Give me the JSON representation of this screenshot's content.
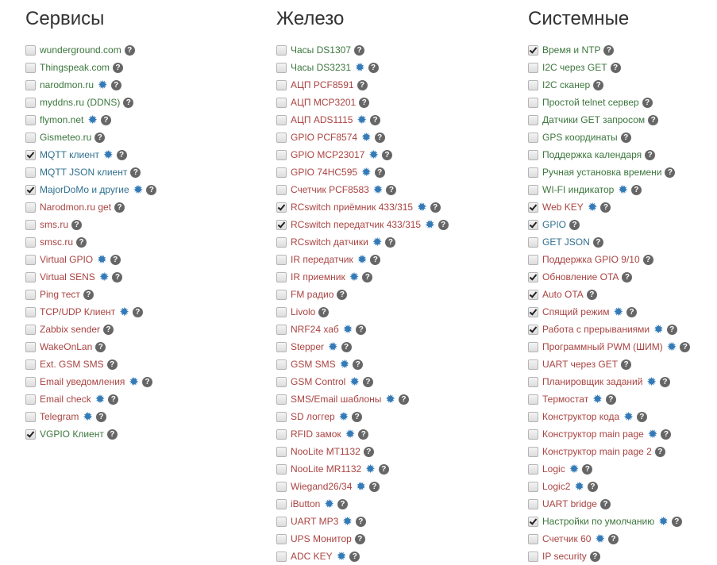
{
  "colors": {
    "g": "#3c763d",
    "b": "#31708f",
    "r": "#a94442"
  },
  "columns": [
    {
      "title": "Сервисы",
      "items": [
        {
          "label": "wunderground.com",
          "color": "g",
          "checked": false,
          "gear": false
        },
        {
          "label": "Thingspeak.com",
          "color": "g",
          "checked": false,
          "gear": false
        },
        {
          "label": "narodmon.ru",
          "color": "g",
          "checked": false,
          "gear": true
        },
        {
          "label": "myddns.ru (DDNS)",
          "color": "g",
          "checked": false,
          "gear": false
        },
        {
          "label": "flymon.net",
          "color": "g",
          "checked": false,
          "gear": true
        },
        {
          "label": "Gismeteo.ru",
          "color": "g",
          "checked": false,
          "gear": false
        },
        {
          "label": "MQTT клиент",
          "color": "b",
          "checked": true,
          "gear": true
        },
        {
          "label": "MQTT JSON клиент",
          "color": "b",
          "checked": false,
          "gear": false
        },
        {
          "label": "MajorDoMo и другие",
          "color": "b",
          "checked": true,
          "gear": true
        },
        {
          "label": "Narodmon.ru get",
          "color": "r",
          "checked": false,
          "gear": false
        },
        {
          "label": "sms.ru",
          "color": "r",
          "checked": false,
          "gear": false
        },
        {
          "label": "smsc.ru",
          "color": "r",
          "checked": false,
          "gear": false
        },
        {
          "label": "Virtual GPIO",
          "color": "r",
          "checked": false,
          "gear": true
        },
        {
          "label": "Virtual SENS",
          "color": "r",
          "checked": false,
          "gear": true
        },
        {
          "label": "Ping тест",
          "color": "r",
          "checked": false,
          "gear": false
        },
        {
          "label": "TCP/UDP Клиент",
          "color": "r",
          "checked": false,
          "gear": true
        },
        {
          "label": "Zabbix sender",
          "color": "r",
          "checked": false,
          "gear": false
        },
        {
          "label": "WakeOnLan",
          "color": "r",
          "checked": false,
          "gear": false
        },
        {
          "label": "Ext. GSM SMS",
          "color": "r",
          "checked": false,
          "gear": false
        },
        {
          "label": "Email уведомления",
          "color": "r",
          "checked": false,
          "gear": true
        },
        {
          "label": "Email check",
          "color": "r",
          "checked": false,
          "gear": true
        },
        {
          "label": "Telegram",
          "color": "r",
          "checked": false,
          "gear": true
        },
        {
          "label": "VGPIO Клиент",
          "color": "g",
          "checked": true,
          "gear": false
        }
      ]
    },
    {
      "title": "Железо",
      "items": [
        {
          "label": "Часы DS1307",
          "color": "g",
          "checked": false,
          "gear": false
        },
        {
          "label": "Часы DS3231",
          "color": "g",
          "checked": false,
          "gear": true
        },
        {
          "label": "АЦП PCF8591",
          "color": "r",
          "checked": false,
          "gear": false
        },
        {
          "label": "АЦП MCP3201",
          "color": "r",
          "checked": false,
          "gear": false
        },
        {
          "label": "АЦП ADS1115",
          "color": "r",
          "checked": false,
          "gear": true
        },
        {
          "label": "GPIO PCF8574",
          "color": "r",
          "checked": false,
          "gear": true
        },
        {
          "label": "GPIO MCP23017",
          "color": "r",
          "checked": false,
          "gear": true
        },
        {
          "label": "GPIO 74HC595",
          "color": "r",
          "checked": false,
          "gear": true
        },
        {
          "label": "Счетчик PCF8583",
          "color": "r",
          "checked": false,
          "gear": true
        },
        {
          "label": "RCswitch приёмник 433/315",
          "color": "r",
          "checked": true,
          "gear": true
        },
        {
          "label": "RCswitch передатчик 433/315",
          "color": "r",
          "checked": true,
          "gear": true
        },
        {
          "label": "RCswitch датчики",
          "color": "r",
          "checked": false,
          "gear": true
        },
        {
          "label": "IR передатчик",
          "color": "r",
          "checked": false,
          "gear": true
        },
        {
          "label": "IR приемник",
          "color": "r",
          "checked": false,
          "gear": true
        },
        {
          "label": "FM радио",
          "color": "r",
          "checked": false,
          "gear": false
        },
        {
          "label": "Livolo",
          "color": "r",
          "checked": false,
          "gear": false
        },
        {
          "label": "NRF24 хаб",
          "color": "r",
          "checked": false,
          "gear": true
        },
        {
          "label": "Stepper",
          "color": "r",
          "checked": false,
          "gear": true
        },
        {
          "label": "GSM SMS",
          "color": "r",
          "checked": false,
          "gear": true
        },
        {
          "label": "GSM Control",
          "color": "r",
          "checked": false,
          "gear": true
        },
        {
          "label": "SMS/Email шаблоны",
          "color": "r",
          "checked": false,
          "gear": true
        },
        {
          "label": "SD логгер",
          "color": "r",
          "checked": false,
          "gear": true
        },
        {
          "label": "RFID замок",
          "color": "r",
          "checked": false,
          "gear": true
        },
        {
          "label": "NooLite MT1132",
          "color": "r",
          "checked": false,
          "gear": false
        },
        {
          "label": "NooLite MR1132",
          "color": "r",
          "checked": false,
          "gear": true
        },
        {
          "label": "Wiegand26/34",
          "color": "r",
          "checked": false,
          "gear": true
        },
        {
          "label": "iButton",
          "color": "r",
          "checked": false,
          "gear": true
        },
        {
          "label": "UART MP3",
          "color": "r",
          "checked": false,
          "gear": true
        },
        {
          "label": "UPS Монитор",
          "color": "r",
          "checked": false,
          "gear": false
        },
        {
          "label": "ADC KEY",
          "color": "r",
          "checked": false,
          "gear": true
        }
      ]
    },
    {
      "title": "Системные",
      "items": [
        {
          "label": "Время и NTP",
          "color": "g",
          "checked": true,
          "gear": false
        },
        {
          "label": "I2C через GET",
          "color": "g",
          "checked": false,
          "gear": false
        },
        {
          "label": "I2C сканер",
          "color": "g",
          "checked": false,
          "gear": false
        },
        {
          "label": "Простой telnet сервер",
          "color": "g",
          "checked": false,
          "gear": false
        },
        {
          "label": "Датчики GET запросом",
          "color": "g",
          "checked": false,
          "gear": false
        },
        {
          "label": "GPS координаты",
          "color": "g",
          "checked": false,
          "gear": false
        },
        {
          "label": "Поддержка календаря",
          "color": "g",
          "checked": false,
          "gear": false
        },
        {
          "label": "Ручная установка времени",
          "color": "g",
          "checked": false,
          "gear": false
        },
        {
          "label": "WI-FI индикатор",
          "color": "g",
          "checked": false,
          "gear": true
        },
        {
          "label": "Web KEY",
          "color": "r",
          "checked": true,
          "gear": true
        },
        {
          "label": "GPIO",
          "color": "b",
          "checked": true,
          "gear": false
        },
        {
          "label": "GET JSON",
          "color": "b",
          "checked": false,
          "gear": false
        },
        {
          "label": "Поддержка GPIO 9/10",
          "color": "r",
          "checked": false,
          "gear": false
        },
        {
          "label": "Обновление OTA",
          "color": "r",
          "checked": true,
          "gear": false
        },
        {
          "label": "Auto OTA",
          "color": "r",
          "checked": true,
          "gear": false
        },
        {
          "label": "Спящий режим",
          "color": "r",
          "checked": true,
          "gear": true
        },
        {
          "label": "Работа с прерываниями",
          "color": "r",
          "checked": true,
          "gear": true
        },
        {
          "label": "Программный PWM (ШИМ)",
          "color": "r",
          "checked": false,
          "gear": true
        },
        {
          "label": "UART через GET",
          "color": "r",
          "checked": false,
          "gear": false
        },
        {
          "label": "Планировщик заданий",
          "color": "r",
          "checked": false,
          "gear": true
        },
        {
          "label": "Термостат",
          "color": "r",
          "checked": false,
          "gear": true
        },
        {
          "label": "Конструктор кода",
          "color": "r",
          "checked": false,
          "gear": true
        },
        {
          "label": "Конструктор main page",
          "color": "r",
          "checked": false,
          "gear": true
        },
        {
          "label": "Конструктор main page 2",
          "color": "r",
          "checked": false,
          "gear": false
        },
        {
          "label": "Logic",
          "color": "r",
          "checked": false,
          "gear": true
        },
        {
          "label": "Logic2",
          "color": "r",
          "checked": false,
          "gear": true
        },
        {
          "label": "UART bridge",
          "color": "r",
          "checked": false,
          "gear": false
        },
        {
          "label": "Настройки по умолчанию",
          "color": "g",
          "checked": true,
          "gear": true
        },
        {
          "label": "Счетчик 60",
          "color": "r",
          "checked": false,
          "gear": true
        },
        {
          "label": "IP security",
          "color": "r",
          "checked": false,
          "gear": false
        }
      ]
    }
  ]
}
